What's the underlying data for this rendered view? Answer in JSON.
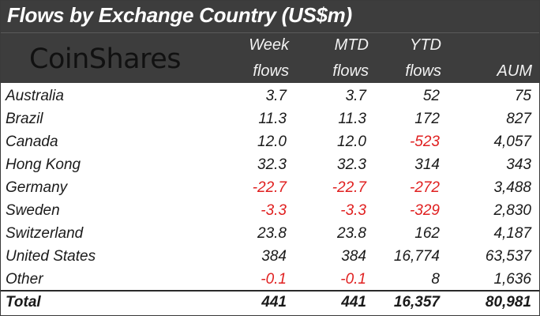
{
  "title": "Flows by Exchange Country (US$m)",
  "logo": "CoinShares",
  "columns": [
    {
      "line1": "Week",
      "line2": "flows"
    },
    {
      "line1": "MTD",
      "line2": "flows"
    },
    {
      "line1": "YTD",
      "line2": "flows"
    },
    {
      "line1": "",
      "line2": "AUM"
    }
  ],
  "rows": [
    {
      "country": "Australia",
      "week": "3.7",
      "mtd": "3.7",
      "ytd": "52",
      "aum": "75"
    },
    {
      "country": "Brazil",
      "week": "11.3",
      "mtd": "11.3",
      "ytd": "172",
      "aum": "827"
    },
    {
      "country": "Canada",
      "week": "12.0",
      "mtd": "12.0",
      "ytd": "-523",
      "aum": "4,057"
    },
    {
      "country": "Hong Kong",
      "week": "32.3",
      "mtd": "32.3",
      "ytd": "314",
      "aum": "343"
    },
    {
      "country": "Germany",
      "week": "-22.7",
      "mtd": "-22.7",
      "ytd": "-272",
      "aum": "3,488"
    },
    {
      "country": "Sweden",
      "week": "-3.3",
      "mtd": "-3.3",
      "ytd": "-329",
      "aum": "2,830"
    },
    {
      "country": "Switzerland",
      "week": "23.8",
      "mtd": "23.8",
      "ytd": "162",
      "aum": "4,187"
    },
    {
      "country": "United States",
      "week": "384",
      "mtd": "384",
      "ytd": "16,774",
      "aum": "63,537"
    },
    {
      "country": "Other",
      "week": "-0.1",
      "mtd": "-0.1",
      "ytd": "8",
      "aum": "1,636"
    }
  ],
  "total": {
    "country": "Total",
    "week": "441",
    "mtd": "441",
    "ytd": "16,357",
    "aum": "80,981"
  },
  "colors": {
    "header_bg": "#3d3d3d",
    "negative": "#e02020",
    "text": "#1a1a1a"
  }
}
